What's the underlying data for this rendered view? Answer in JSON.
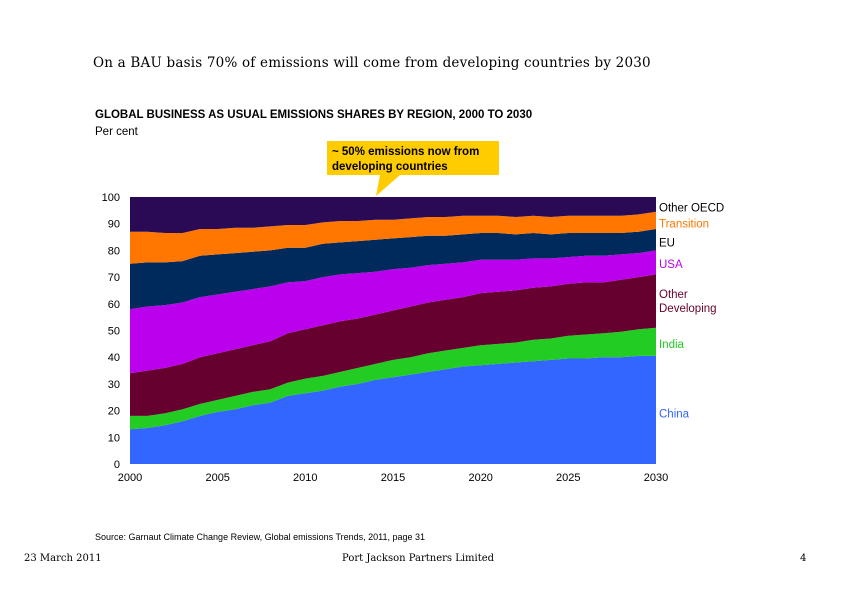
{
  "slide": {
    "headline": "On a BAU basis 70% of emissions will come from developing countries by 2030",
    "source": "Source:   Garnaut Climate Change Review, Global emissions Trends, 2011, page 31",
    "footer_date": "23 March 2011",
    "footer_company": "Port Jackson Partners Limited",
    "footer_page": "4"
  },
  "callout": {
    "line1": "~ 50% emissions now from",
    "line2": "developing countries",
    "color": "#ffcc00"
  },
  "chart_data": {
    "type": "area",
    "stacked": true,
    "title": "GLOBAL BUSINESS AS USUAL EMISSIONS SHARES BY REGION, 2000 TO 2030",
    "subtitle": "Per cent",
    "xlim": [
      2000,
      2030
    ],
    "ylim": [
      0,
      100
    ],
    "x_ticks": [
      "2000",
      "2005",
      "2010",
      "2015",
      "2020",
      "2025",
      "2030"
    ],
    "y_ticks": [
      "0",
      "10",
      "20",
      "30",
      "40",
      "50",
      "60",
      "70",
      "80",
      "90",
      "100"
    ],
    "x": [
      2000,
      2001,
      2002,
      2003,
      2004,
      2005,
      2006,
      2007,
      2008,
      2009,
      2010,
      2011,
      2012,
      2013,
      2014,
      2015,
      2016,
      2017,
      2018,
      2019,
      2020,
      2021,
      2022,
      2023,
      2024,
      2025,
      2026,
      2027,
      2028,
      2029,
      2030
    ],
    "series": [
      {
        "name": "China",
        "color": "#3366ff",
        "label_color": "#3366ff",
        "label_y": 19,
        "values": [
          13,
          13.5,
          14.5,
          16,
          18,
          19.5,
          20.5,
          22,
          23,
          25.5,
          26.5,
          27.5,
          29,
          30,
          31.5,
          32.5,
          33.5,
          34.5,
          35.5,
          36.5,
          37,
          37.5,
          38,
          38.5,
          39,
          39.5,
          39.5,
          40,
          40,
          40.5,
          40.5
        ]
      },
      {
        "name": "India",
        "color": "#22cc22",
        "label_color": "#22cc22",
        "label_y": 45,
        "values": [
          5,
          4.5,
          4.5,
          4.5,
          4.5,
          4.5,
          5,
          5,
          5,
          5,
          5.5,
          5.5,
          5.5,
          6,
          6,
          6.5,
          6.5,
          7,
          7,
          7,
          7.5,
          7.5,
          7.5,
          8,
          8,
          8.5,
          9,
          9,
          9.5,
          10,
          10.5
        ]
      },
      {
        "name": "Other\nDeveloping",
        "color": "#66002e",
        "label_color": "#66002e",
        "label_y": 61,
        "values": [
          16,
          17,
          17,
          17,
          17.5,
          17.5,
          17.5,
          17.5,
          18,
          18.5,
          18.5,
          19,
          19,
          18.5,
          18.5,
          18.5,
          19,
          19,
          19,
          19,
          19.5,
          19.5,
          19.5,
          19.5,
          19.5,
          19.5,
          19.5,
          19,
          19.5,
          19.5,
          20
        ]
      },
      {
        "name": "USA",
        "color": "#bb00ee",
        "label_color": "#bb00ee",
        "label_y": 75,
        "values": [
          24,
          24,
          23.5,
          23,
          22.5,
          22,
          21.5,
          21,
          20.5,
          19,
          18,
          18,
          17.5,
          17,
          16,
          15.5,
          14.5,
          14,
          13.5,
          13,
          12.5,
          12,
          11.5,
          11,
          10.5,
          10,
          10,
          10,
          9.5,
          9,
          9
        ]
      },
      {
        "name": "EU",
        "color": "#002a5c",
        "label_color": "#000000",
        "label_y": 83,
        "values": [
          17,
          16.5,
          16,
          15.5,
          15.5,
          15,
          14.5,
          14,
          13.5,
          13,
          12.5,
          12.5,
          12,
          12,
          12,
          11.5,
          11.5,
          11,
          10.5,
          10.5,
          10,
          10,
          9.5,
          9.5,
          9,
          9,
          8.5,
          8.5,
          8,
          8,
          8
        ]
      },
      {
        "name": "Transition",
        "color": "#ff7700",
        "label_color": "#ff7700",
        "label_y": 90,
        "values": [
          12,
          11.5,
          11,
          10.5,
          10,
          9.5,
          9.5,
          9,
          9,
          8.5,
          8.5,
          8,
          8,
          7.5,
          7.5,
          7,
          7,
          7,
          7,
          7,
          6.5,
          6.5,
          6.5,
          6.5,
          6.5,
          6.5,
          6.5,
          6.5,
          6.5,
          6.5,
          6.5
        ]
      },
      {
        "name": "Other OECD",
        "color": "#2a0a55",
        "label_color": "#000000",
        "label_y": 96,
        "values": [
          13,
          13,
          13.5,
          13.5,
          12,
          12,
          11.5,
          11.5,
          11,
          10.5,
          10.5,
          9.5,
          9.5,
          9.5,
          9,
          8.5,
          8.5,
          8,
          8,
          8,
          7.5,
          7.5,
          7.5,
          7.5,
          7.5,
          7.5,
          7.5,
          7.5,
          7.5,
          7.5,
          5.5
        ]
      }
    ]
  }
}
